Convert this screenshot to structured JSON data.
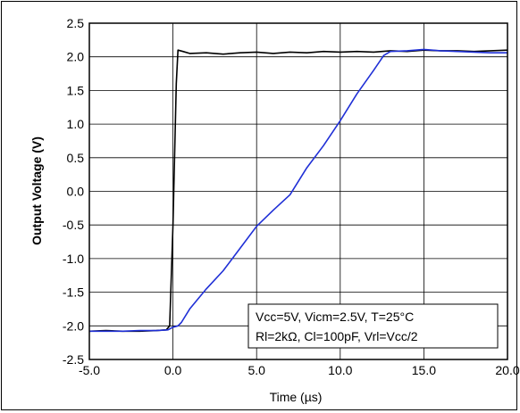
{
  "chart_data": {
    "type": "line",
    "xlabel": "Time (µs)",
    "ylabel": "Output Voltage (V)",
    "xlim": [
      -5.0,
      20.0
    ],
    "ylim": [
      -2.5,
      2.5
    ],
    "x_ticks": [
      "-5.0",
      "0.0",
      "5.0",
      "10.0",
      "15.0",
      "20.0"
    ],
    "y_ticks": [
      "2.5",
      "2.0",
      "1.5",
      "1.0",
      "0.5",
      "0.0",
      "-0.5",
      "-1.0",
      "-1.5",
      "-2.0",
      "-2.5"
    ],
    "grid": true,
    "annotation": [
      "Vcc=5V, Vicm=2.5V, T=25°C",
      "Rl=2kΩ, Cl=100pF, Vrl=Vcc/2"
    ],
    "series": [
      {
        "color": "#000000",
        "x": [
          -5.0,
          -4.0,
          -3.0,
          -2.0,
          -1.0,
          -0.4,
          -0.2,
          0.0,
          0.2,
          0.3,
          0.6,
          1.0,
          2.0,
          3.0,
          4.0,
          5.0,
          6.0,
          7.0,
          8.0,
          9.0,
          10.0,
          11.0,
          12.0,
          13.0,
          14.0,
          15.0,
          16.0,
          17.0,
          18.0,
          19.0,
          20.0
        ],
        "y": [
          -2.08,
          -2.07,
          -2.08,
          -2.08,
          -2.07,
          -2.06,
          -2.0,
          -0.5,
          1.6,
          2.1,
          2.08,
          2.05,
          2.06,
          2.04,
          2.06,
          2.07,
          2.05,
          2.07,
          2.06,
          2.08,
          2.07,
          2.08,
          2.07,
          2.09,
          2.08,
          2.1,
          2.09,
          2.09,
          2.08,
          2.09,
          2.1
        ]
      },
      {
        "color": "#1f2fd6",
        "x": [
          -5.0,
          -4.0,
          -3.0,
          -2.0,
          -1.0,
          -0.3,
          0.0,
          0.3,
          0.5,
          1.0,
          2.0,
          3.0,
          4.0,
          5.0,
          6.0,
          7.0,
          8.0,
          9.0,
          10.0,
          11.0,
          12.0,
          12.6,
          13.0,
          14.0,
          15.0,
          16.0,
          17.0,
          18.0,
          19.0,
          20.0
        ],
        "y": [
          -2.08,
          -2.08,
          -2.08,
          -2.07,
          -2.07,
          -2.06,
          -2.02,
          -2.0,
          -1.95,
          -1.75,
          -1.45,
          -1.18,
          -0.85,
          -0.52,
          -0.28,
          -0.05,
          0.35,
          0.68,
          1.05,
          1.45,
          1.8,
          2.02,
          2.08,
          2.09,
          2.11,
          2.09,
          2.08,
          2.07,
          2.06,
          2.06
        ]
      }
    ]
  }
}
